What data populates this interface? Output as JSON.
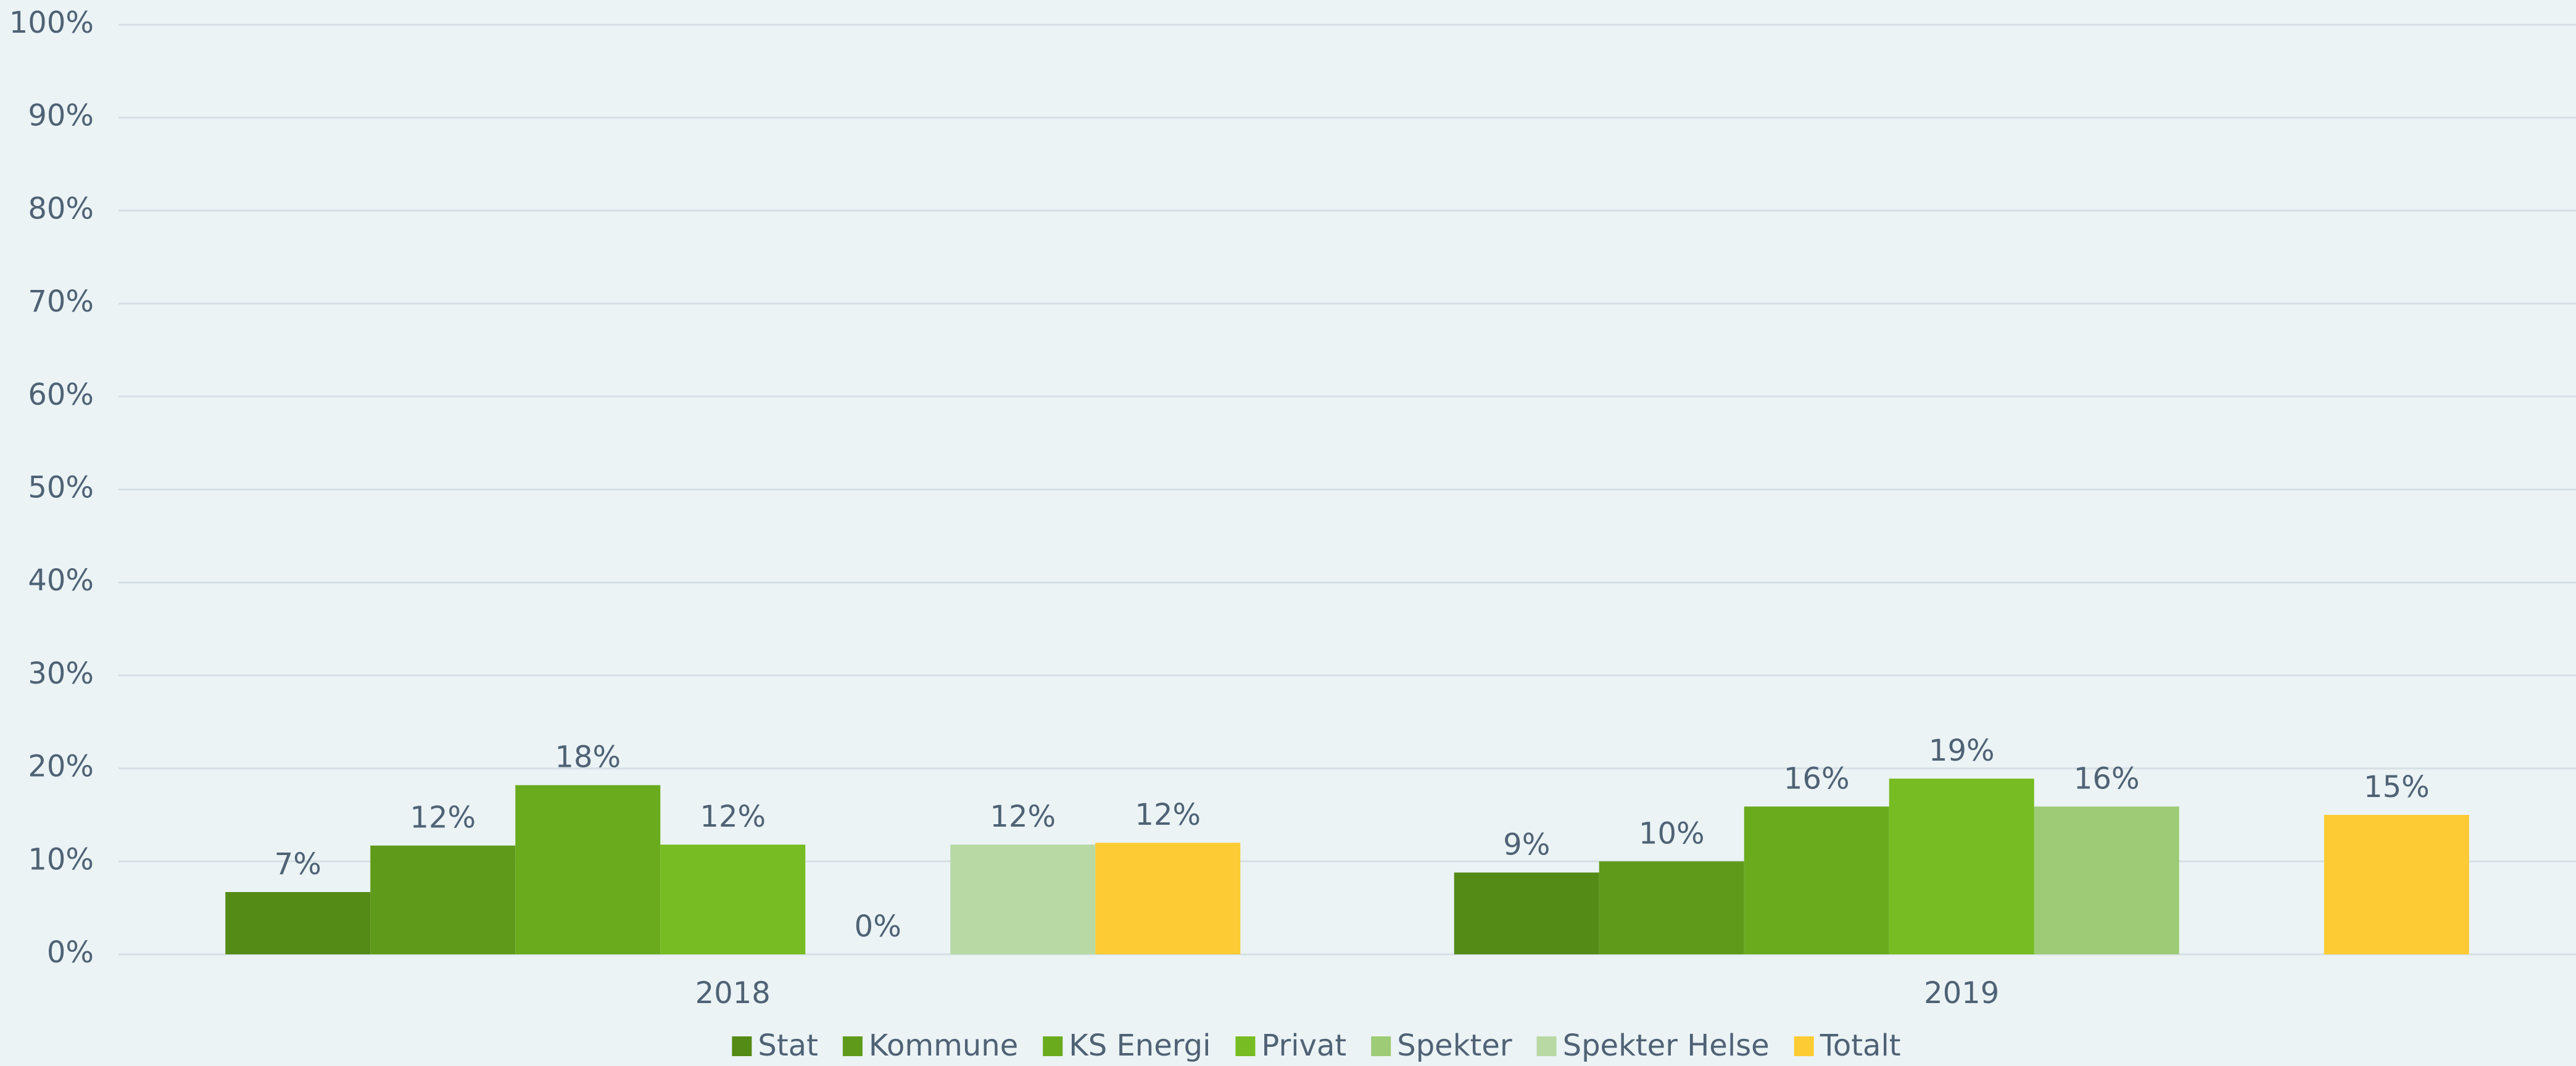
{
  "chart_data": {
    "type": "bar",
    "categories": [
      "2018",
      "2019"
    ],
    "series": [
      {
        "name": "Stat",
        "color": "#548a16",
        "values": [
          6.7,
          8.8
        ],
        "value_labels": [
          "7%",
          "9%"
        ]
      },
      {
        "name": "Kommune",
        "color": "#5f9a1a",
        "values": [
          11.7,
          10
        ],
        "value_labels": [
          "12%",
          "10%"
        ]
      },
      {
        "name": "KS Energi",
        "color": "#6aab1e",
        "values": [
          18.2,
          15.9
        ],
        "value_labels": [
          "18%",
          "16%"
        ]
      },
      {
        "name": "Privat",
        "color": "#76bc22",
        "values": [
          11.8,
          18.9
        ],
        "value_labels": [
          "12%",
          "19%"
        ]
      },
      {
        "name": "Spekter",
        "color": "#9dcb76",
        "values": [
          0,
          15.9
        ],
        "value_labels": [
          "0%",
          "16%"
        ]
      },
      {
        "name": "Spekter Helse",
        "color": "#b8d9a4",
        "values": [
          11.8,
          null
        ],
        "value_labels": [
          "12%",
          null
        ]
      },
      {
        "name": "Totalt",
        "color": "#fdcb33",
        "values": [
          12,
          15
        ],
        "value_labels": [
          "12%",
          "15%"
        ]
      }
    ],
    "ylim": [
      0,
      100
    ],
    "yticks": [
      {
        "value": 0,
        "label": "0%"
      },
      {
        "value": 10,
        "label": "10%"
      },
      {
        "value": 20,
        "label": "20%"
      },
      {
        "value": 30,
        "label": "30%"
      },
      {
        "value": 40,
        "label": "40%"
      },
      {
        "value": 50,
        "label": "50%"
      },
      {
        "value": 60,
        "label": "60%"
      },
      {
        "value": 70,
        "label": "70%"
      },
      {
        "value": 80,
        "label": "80%"
      },
      {
        "value": 90,
        "label": "90%"
      },
      {
        "value": 100,
        "label": "100%"
      }
    ],
    "grid": true,
    "legend": "bottom"
  }
}
